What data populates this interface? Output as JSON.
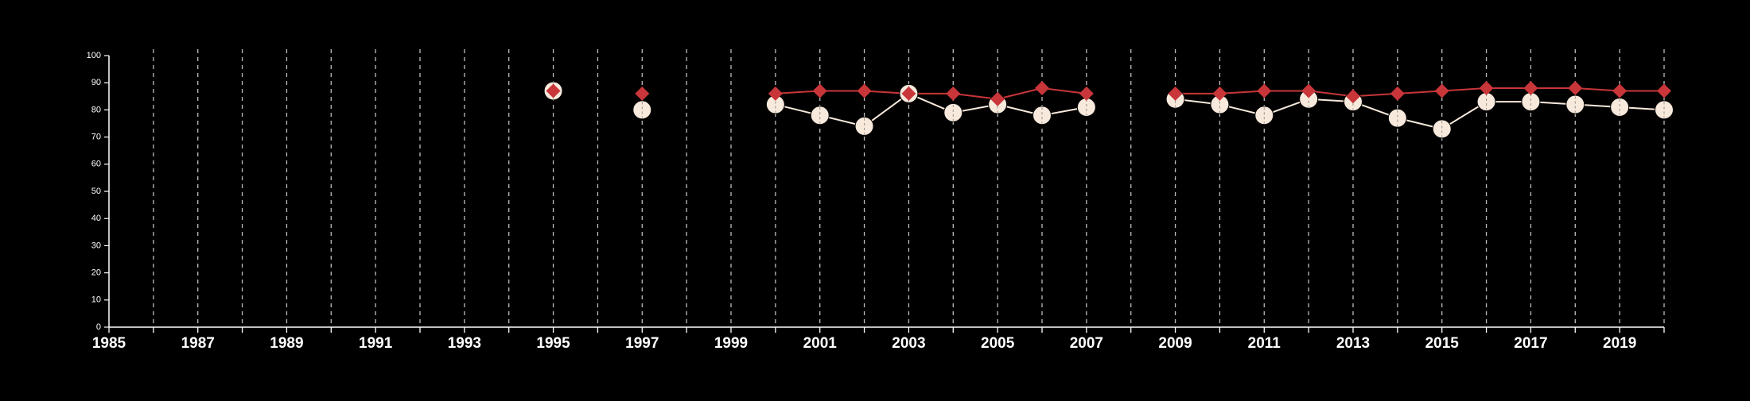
{
  "chart_data": {
    "type": "line",
    "title": "",
    "xlabel": "",
    "ylabel": "",
    "xlim": [
      1985,
      2020
    ],
    "ylim": [
      0,
      100
    ],
    "x_ticks": [
      1985,
      1987,
      1989,
      1991,
      1993,
      1995,
      1997,
      1999,
      2001,
      2003,
      2005,
      2007,
      2009,
      2011,
      2013,
      2015,
      2017,
      2019
    ],
    "y_ticks": [
      0,
      10,
      20,
      30,
      40,
      50,
      60,
      70,
      80,
      90,
      100
    ],
    "vertical_gridlines_years": [
      1986,
      1987,
      1988,
      1989,
      1990,
      1991,
      1992,
      1993,
      1994,
      1995,
      1996,
      1997,
      1998,
      1999,
      2000,
      2001,
      2002,
      2003,
      2004,
      2005,
      2006,
      2007,
      2008,
      2009,
      2010,
      2011,
      2012,
      2013,
      2014,
      2015,
      2016,
      2017,
      2018,
      2019,
      2020
    ],
    "grid": "vertical dashed",
    "legend": "none",
    "series": [
      {
        "marker": "diamond",
        "color": "#c8363a",
        "points": [
          {
            "x": 1995,
            "y": 87
          },
          {
            "x": 1997,
            "y": 86
          },
          {
            "x": 2000,
            "y": 86
          },
          {
            "x": 2001,
            "y": 87
          },
          {
            "x": 2002,
            "y": 87
          },
          {
            "x": 2003,
            "y": 86
          },
          {
            "x": 2004,
            "y": 86
          },
          {
            "x": 2005,
            "y": 84
          },
          {
            "x": 2006,
            "y": 88
          },
          {
            "x": 2007,
            "y": 86
          },
          {
            "x": 2009,
            "y": 86
          },
          {
            "x": 2010,
            "y": 86
          },
          {
            "x": 2011,
            "y": 87
          },
          {
            "x": 2012,
            "y": 87
          },
          {
            "x": 2013,
            "y": 85
          },
          {
            "x": 2014,
            "y": 86
          },
          {
            "x": 2015,
            "y": 87
          },
          {
            "x": 2016,
            "y": 88
          },
          {
            "x": 2017,
            "y": 88
          },
          {
            "x": 2018,
            "y": 88
          },
          {
            "x": 2019,
            "y": 87
          },
          {
            "x": 2020,
            "y": 87
          }
        ]
      },
      {
        "marker": "circle",
        "color": "#f7e9dc",
        "points": [
          {
            "x": 1995,
            "y": 87
          },
          {
            "x": 1997,
            "y": 80
          },
          {
            "x": 2000,
            "y": 82
          },
          {
            "x": 2001,
            "y": 78
          },
          {
            "x": 2002,
            "y": 74
          },
          {
            "x": 2003,
            "y": 86
          },
          {
            "x": 2004,
            "y": 79
          },
          {
            "x": 2005,
            "y": 82
          },
          {
            "x": 2006,
            "y": 78
          },
          {
            "x": 2007,
            "y": 81
          },
          {
            "x": 2009,
            "y": 84
          },
          {
            "x": 2010,
            "y": 82
          },
          {
            "x": 2011,
            "y": 78
          },
          {
            "x": 2012,
            "y": 84
          },
          {
            "x": 2013,
            "y": 83
          },
          {
            "x": 2014,
            "y": 77
          },
          {
            "x": 2015,
            "y": 73
          },
          {
            "x": 2016,
            "y": 83
          },
          {
            "x": 2017,
            "y": 83
          },
          {
            "x": 2018,
            "y": 82
          },
          {
            "x": 2019,
            "y": 81
          },
          {
            "x": 2020,
            "y": 80
          }
        ]
      }
    ],
    "line_segments_years": [
      [
        2000,
        2007
      ],
      [
        2009,
        2020
      ]
    ]
  },
  "colors": {
    "background": "#000000",
    "axis": "#ffffff",
    "grid": "#bdbdbd"
  }
}
